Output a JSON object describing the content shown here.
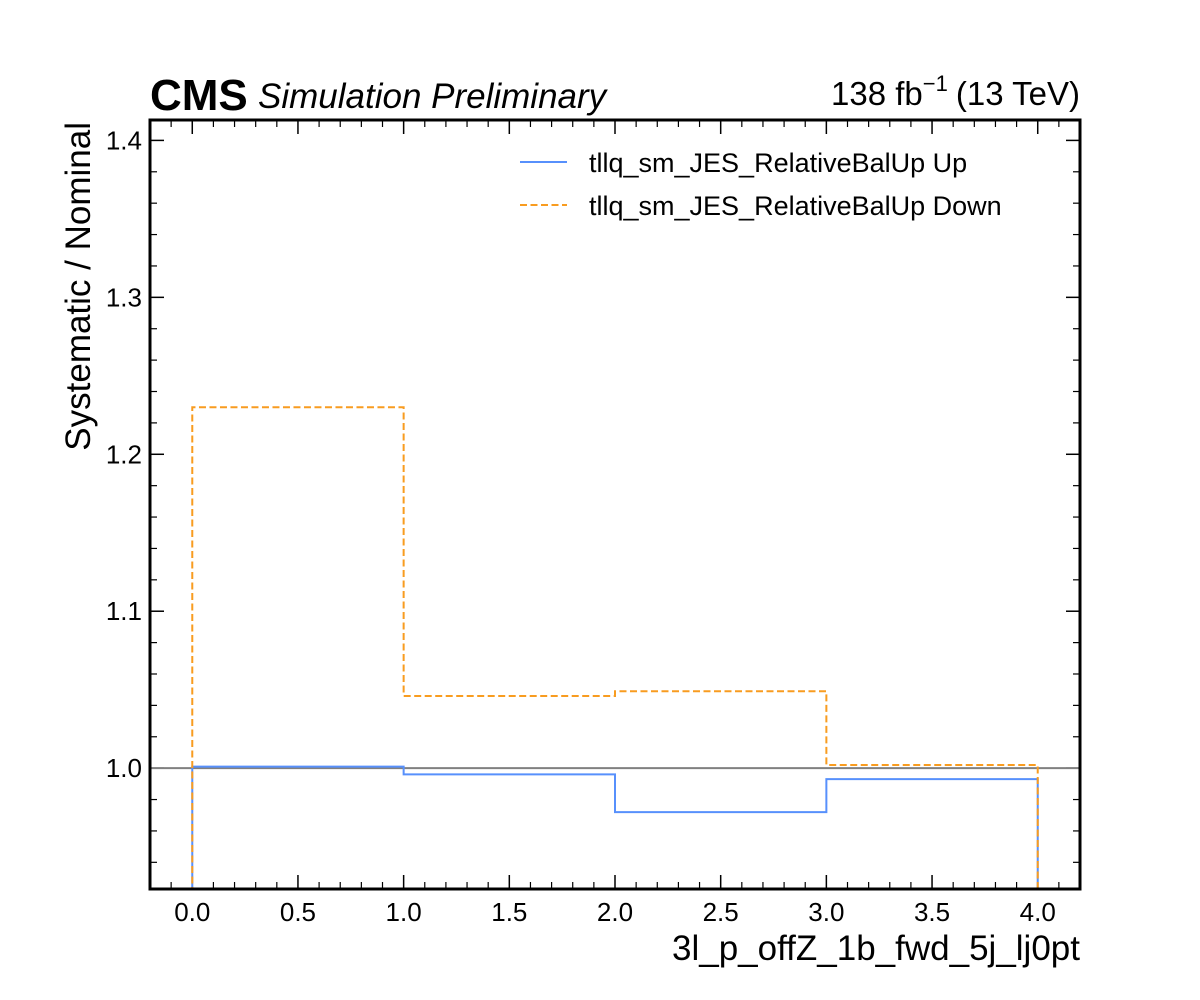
{
  "chart_data": {
    "type": "line",
    "style": "step-histogram",
    "experiment_label": "CMS",
    "experiment_sublabel": "Simulation Preliminary",
    "lumi_label": {
      "value": "138 fb",
      "exponent": "−1",
      "energy": "(13 TeV)"
    },
    "xlabel": "3l_p_offZ_1b_fwd_5j_lj0pt",
    "ylabel": "Systematic / Nominal",
    "xlim": [
      -0.2,
      4.2
    ],
    "ylim": [
      0.923,
      1.413
    ],
    "x_ticks": [
      0.0,
      0.5,
      1.0,
      1.5,
      2.0,
      2.5,
      3.0,
      3.5,
      4.0
    ],
    "x_tick_labels": [
      "0.0",
      "0.5",
      "1.0",
      "1.5",
      "2.0",
      "2.5",
      "3.0",
      "3.5",
      "4.0"
    ],
    "y_ticks": [
      1.0,
      1.1,
      1.2,
      1.3,
      1.4
    ],
    "y_tick_labels": [
      "1.0",
      "1.1",
      "1.2",
      "1.3",
      "1.4"
    ],
    "reference_line": {
      "y": 1.0,
      "color": "#808080"
    },
    "bin_edges": [
      0,
      1,
      2,
      3,
      4
    ],
    "series": [
      {
        "name": "tllq_sm_JES_RelativeBalUp Up",
        "values": [
          1.001,
          0.996,
          0.972,
          0.993
        ],
        "color": "#5790fc",
        "dash": "solid"
      },
      {
        "name": "tllq_sm_JES_RelativeBalUp Down",
        "values": [
          1.23,
          1.046,
          1.049,
          1.002
        ],
        "color": "#f89c20",
        "dash": "dashed"
      }
    ],
    "legend_position": "top-right",
    "grid": false
  }
}
